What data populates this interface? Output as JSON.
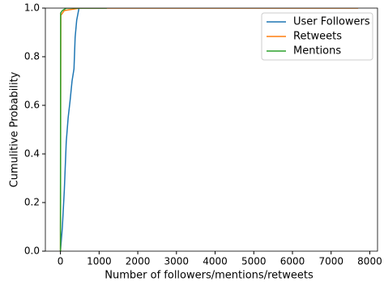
{
  "chart_data": {
    "type": "line",
    "xlabel": "Number of followers/mentions/retweets",
    "ylabel": "Cumulitive Probability",
    "xlim": [
      -390,
      8200
    ],
    "ylim": [
      0,
      1
    ],
    "xticks": [
      0,
      1000,
      2000,
      3000,
      4000,
      5000,
      6000,
      7000,
      8000
    ],
    "yticks": [
      {
        "value": 0,
        "label": "0.0"
      },
      {
        "value": 0.2,
        "label": "0.2"
      },
      {
        "value": 0.4,
        "label": "0.4"
      },
      {
        "value": 0.6,
        "label": "0.6"
      },
      {
        "value": 0.8,
        "label": "0.8"
      },
      {
        "value": 1,
        "label": "1.0"
      }
    ],
    "legend": "upper right",
    "series": [
      {
        "name": "User Followers",
        "color": "#1f77b4",
        "x": [
          0,
          50,
          100,
          150,
          200,
          250,
          300,
          350,
          380,
          420,
          480
        ],
        "values": [
          0,
          0.1,
          0.25,
          0.45,
          0.55,
          0.62,
          0.7,
          0.75,
          0.88,
          0.95,
          1
        ]
      },
      {
        "name": "Retweets",
        "color": "#ff7f0e",
        "x": [
          0,
          10,
          100,
          500,
          7700
        ],
        "values": [
          0,
          0.97,
          0.99,
          1,
          1
        ]
      },
      {
        "name": "Mentions",
        "color": "#2ca02c",
        "x": [
          0,
          5,
          50,
          150,
          1200
        ],
        "values": [
          0,
          0.98,
          0.99,
          1,
          1
        ]
      }
    ]
  }
}
